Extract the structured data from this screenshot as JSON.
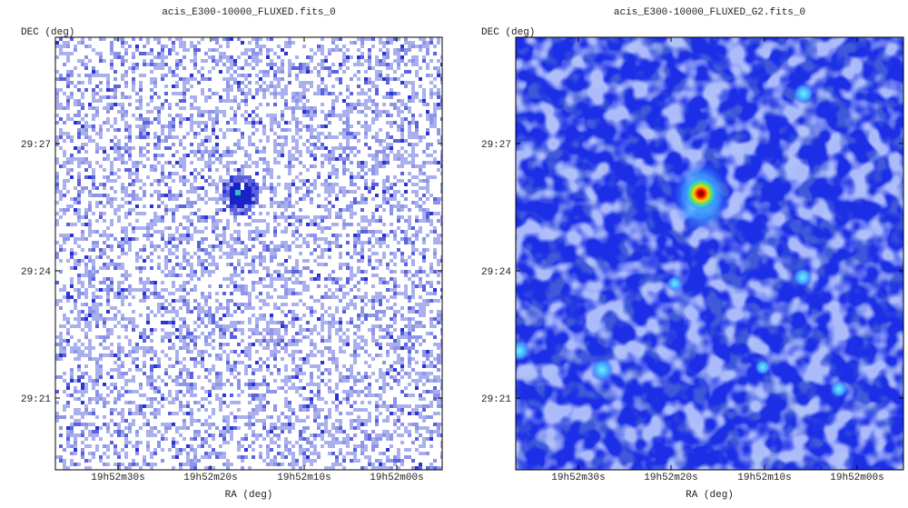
{
  "panels": [
    {
      "title": "acis_E300-10000_FLUXED.fits_0",
      "xlabel": "RA (deg)",
      "ylabel": "DEC (deg)",
      "xticks": [
        "19h52m30s",
        "19h52m20s",
        "19h52m10s",
        "19h52m00s"
      ],
      "yticks": [
        "29:27",
        "29:24",
        "29:21"
      ]
    },
    {
      "title": "acis_E300-10000_FLUXED_G2.fits_0",
      "xlabel": "RA (deg)",
      "ylabel": "DEC (deg)",
      "xticks": [
        "19h52m30s",
        "19h52m20s",
        "19h52m10s",
        "19h52m00s"
      ],
      "yticks": [
        "29:27",
        "29:24",
        "29:21"
      ]
    }
  ]
}
